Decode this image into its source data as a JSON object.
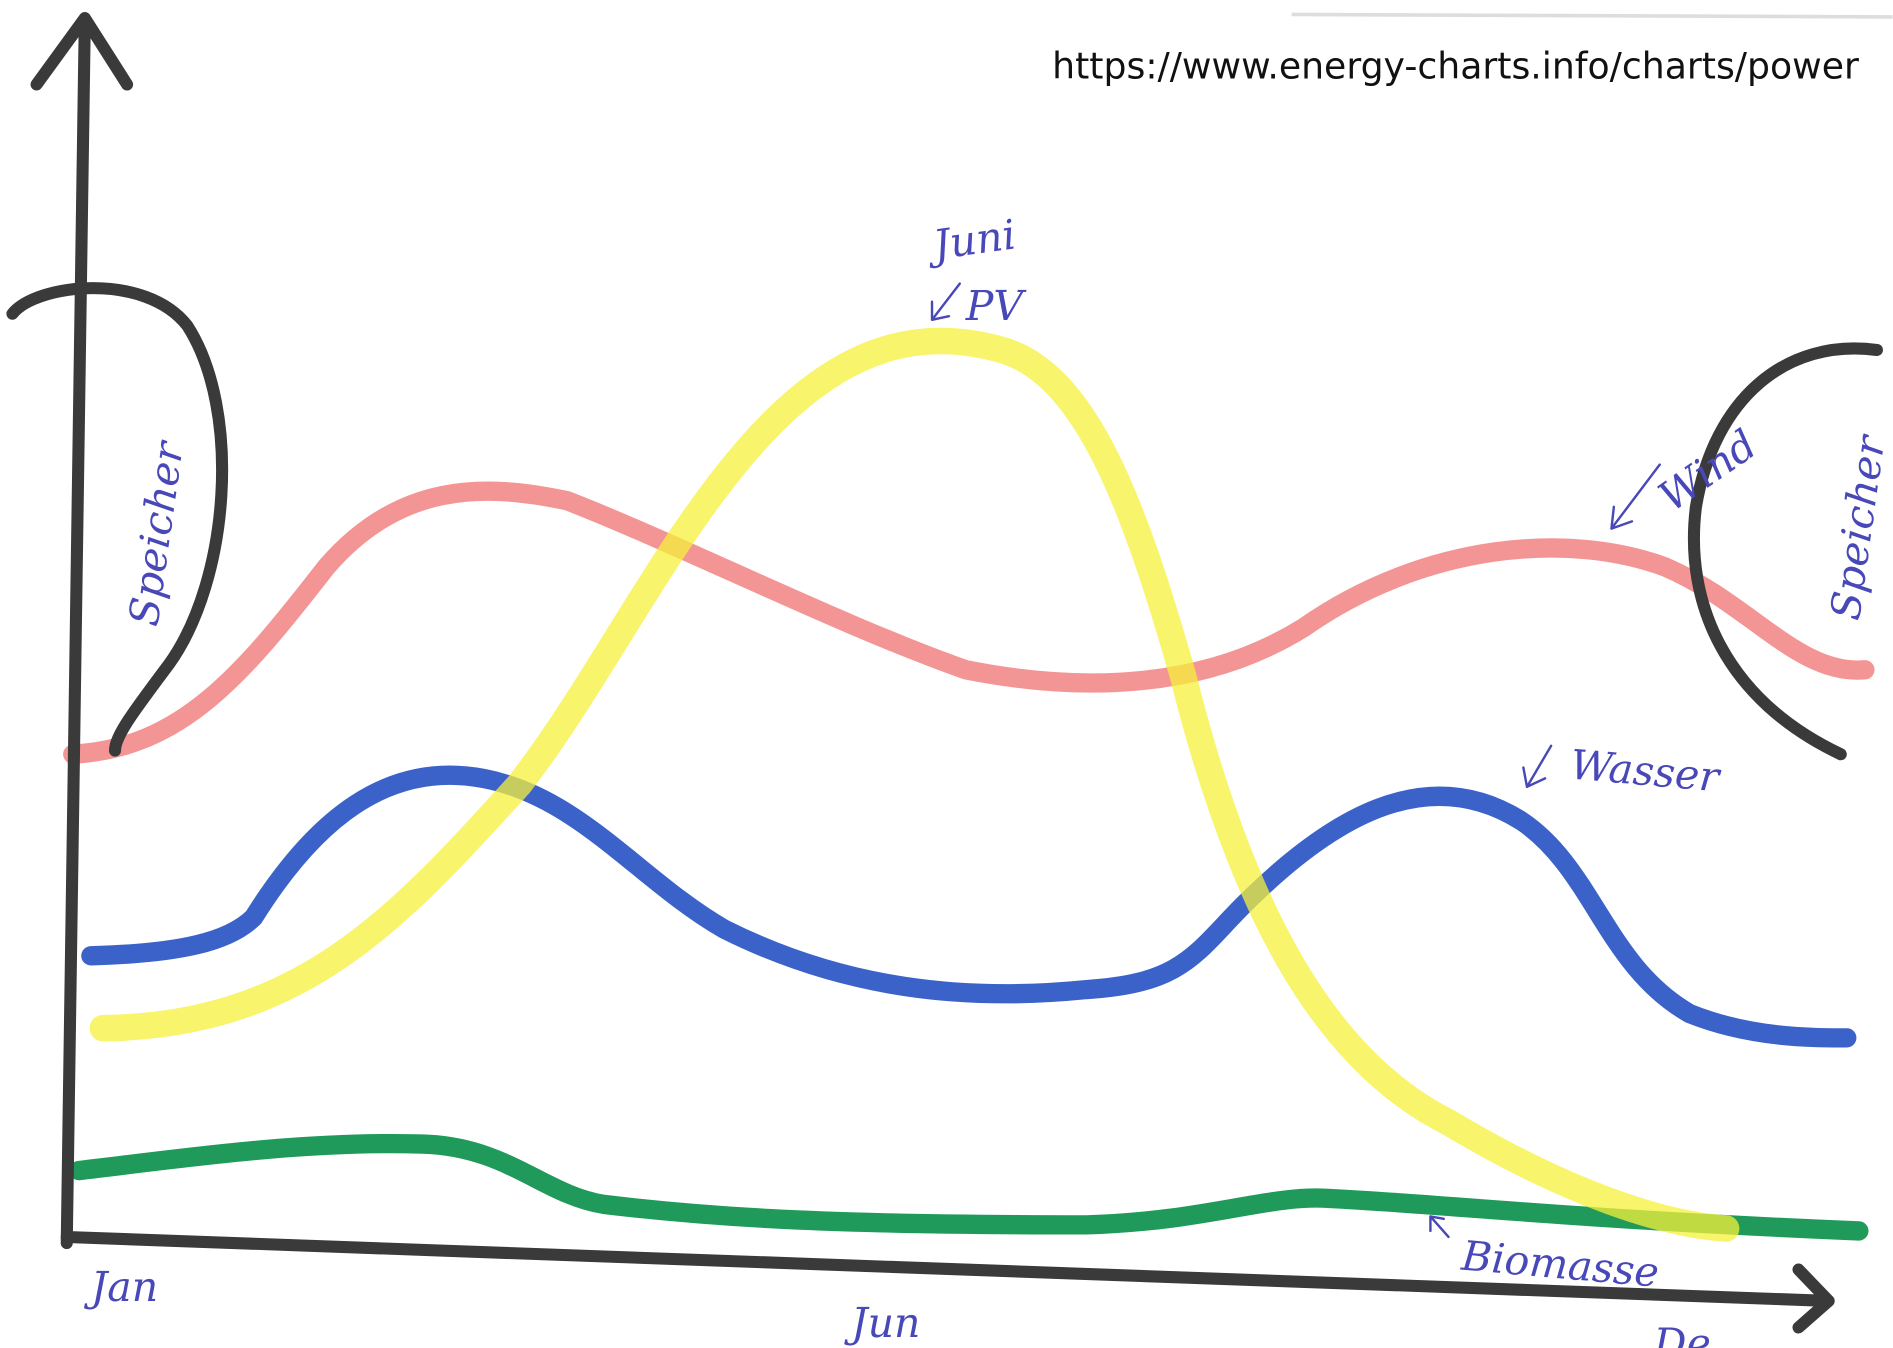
{
  "source_url": "https://www.energy-charts.info/charts/power",
  "labels": {
    "pv_month": "Juni",
    "pv": "PV",
    "storage_left": "Speicher",
    "storage_right": "Speicher",
    "wind": "Wind",
    "water": "Wasser",
    "biomass": "Biomasse"
  },
  "x_axis": {
    "start": "Jan",
    "middle": "Jun",
    "end": "De"
  }
}
